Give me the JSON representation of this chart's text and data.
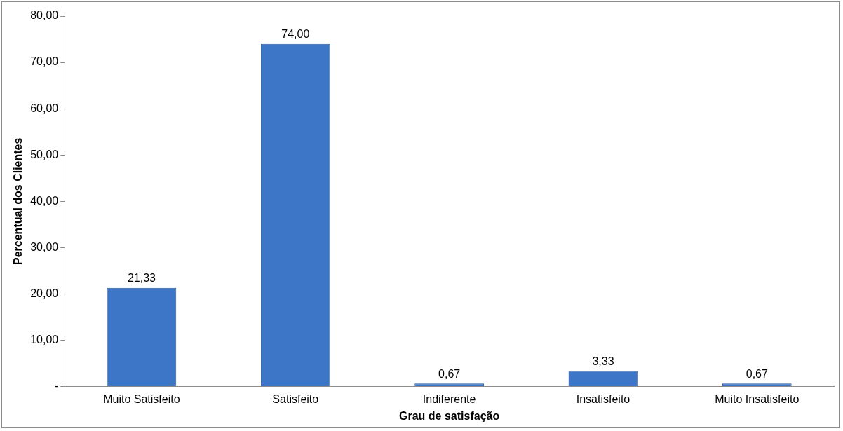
{
  "chart_data": {
    "type": "bar",
    "xlabel": "Grau de satisfação",
    "ylabel": "Percentual dos Clientes",
    "categories": [
      "Muito Satisfeito",
      "Satisfeito",
      "Indiferente",
      "Insatisfeito",
      "Muito Insatisfeito"
    ],
    "values": [
      21.33,
      74.0,
      0.67,
      3.33,
      0.67
    ],
    "value_labels": [
      "21,33",
      "74,00",
      "0,67",
      "3,33",
      "0,67"
    ],
    "color": "#3d76c6",
    "ylim": [
      0,
      80
    ],
    "yticks": [
      {
        "value": 0,
        "label": "-"
      },
      {
        "value": 10,
        "label": "10,00"
      },
      {
        "value": 20,
        "label": "20,00"
      },
      {
        "value": 30,
        "label": "30,00"
      },
      {
        "value": 40,
        "label": "40,00"
      },
      {
        "value": 50,
        "label": "50,00"
      },
      {
        "value": 60,
        "label": "60,00"
      },
      {
        "value": 70,
        "label": "70,00"
      },
      {
        "value": 80,
        "label": "80,00"
      }
    ],
    "grid": false,
    "legend": false
  }
}
